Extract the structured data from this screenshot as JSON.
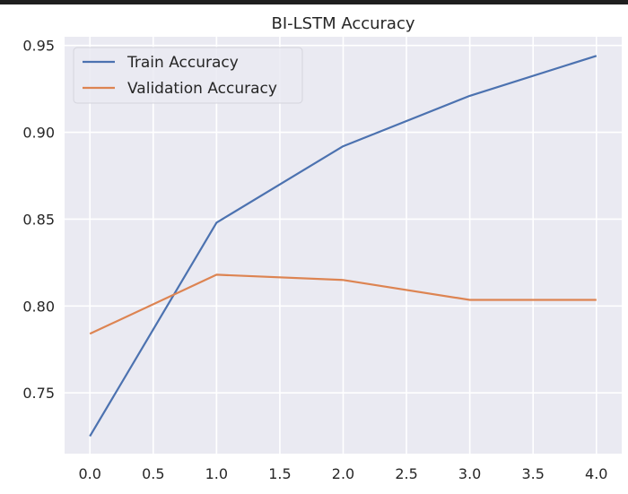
{
  "chart_data": {
    "type": "line",
    "title": "BI-LSTM Accuracy",
    "xlabel": "",
    "ylabel": "",
    "x": [
      0,
      1,
      2,
      3,
      4
    ],
    "xlim": [
      -0.2,
      4.2
    ],
    "ylim": [
      0.715,
      0.955
    ],
    "xticks": [
      0.0,
      0.5,
      1.0,
      1.5,
      2.0,
      2.5,
      3.0,
      3.5,
      4.0
    ],
    "yticks": [
      0.75,
      0.8,
      0.85,
      0.9,
      0.95
    ],
    "grid": true,
    "legend_position": "upper-left",
    "series": [
      {
        "name": "Train Accuracy",
        "color": "#4c72b0",
        "values": [
          0.725,
          0.848,
          0.892,
          0.921,
          0.944
        ]
      },
      {
        "name": "Validation Accuracy",
        "color": "#dd8452",
        "values": [
          0.784,
          0.818,
          0.815,
          0.8035,
          0.8035
        ]
      }
    ],
    "background_color": "#eaeaf2",
    "grid_color": "#ffffff"
  }
}
